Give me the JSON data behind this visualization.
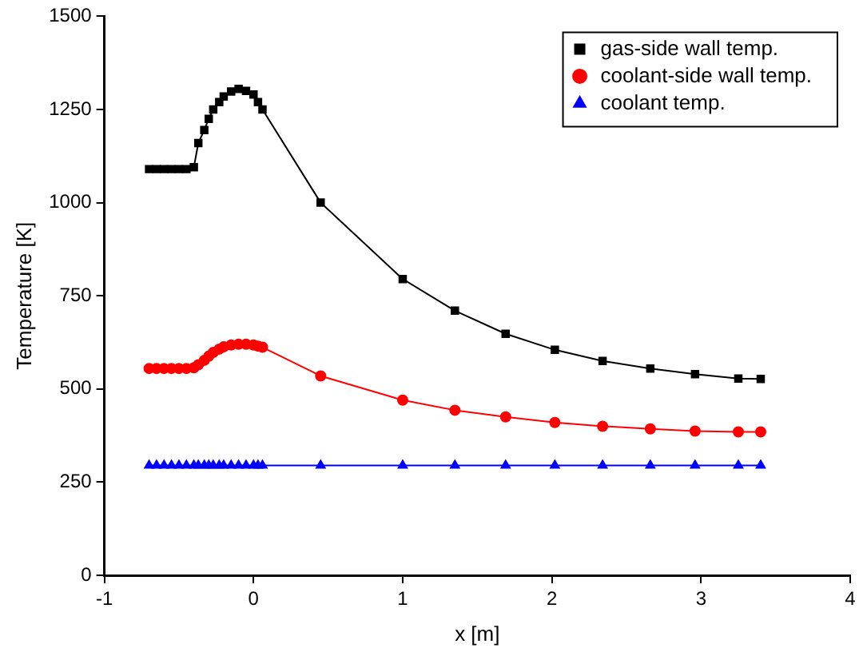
{
  "chart_data": {
    "type": "line",
    "xlabel": "x [m]",
    "ylabel": "Temperature [K]",
    "x": [
      -0.7,
      -0.65,
      -0.6,
      -0.55,
      -0.5,
      -0.45,
      -0.4,
      -0.37,
      -0.33,
      -0.3,
      -0.27,
      -0.23,
      -0.2,
      -0.15,
      -0.1,
      -0.05,
      0,
      0.03,
      0.06,
      0.45,
      1.0,
      1.35,
      1.69,
      2.02,
      2.34,
      2.66,
      2.96,
      3.25,
      3.4
    ],
    "series": [
      {
        "name": "gas-side wall temp.",
        "color": "#000000",
        "marker": "square",
        "values": [
          1090,
          1090,
          1090,
          1090,
          1090,
          1090,
          1095,
          1160,
          1195,
          1225,
          1250,
          1270,
          1285,
          1298,
          1305,
          1300,
          1290,
          1270,
          1250,
          1000,
          795,
          710,
          648,
          605,
          575,
          555,
          540,
          528,
          527
        ]
      },
      {
        "name": "coolant-side wall temp.",
        "color": "#ff0000",
        "marker": "circle",
        "values": [
          555,
          555,
          555,
          555,
          555,
          555,
          557,
          565,
          577,
          588,
          598,
          607,
          613,
          618,
          620,
          620,
          618,
          615,
          612,
          535,
          470,
          443,
          425,
          410,
          400,
          393,
          387,
          385,
          385
        ]
      },
      {
        "name": "coolant temp.",
        "color": "#0000ff",
        "marker": "triangle",
        "values": [
          295,
          295,
          295,
          295,
          295,
          295,
          295,
          295,
          295,
          295,
          295,
          295,
          295,
          295,
          295,
          295,
          295,
          295,
          295,
          295,
          295,
          295,
          295,
          295,
          295,
          295,
          295,
          295,
          295
        ]
      }
    ],
    "xlim": [
      -1,
      4
    ],
    "xticks": [
      -1,
      0,
      1,
      2,
      3,
      4
    ],
    "ylim": [
      0,
      1500
    ],
    "yticks": [
      0,
      250,
      500,
      750,
      1000,
      1250,
      1500
    ],
    "grid": false,
    "legend": "top right",
    "line_style": "solid"
  }
}
